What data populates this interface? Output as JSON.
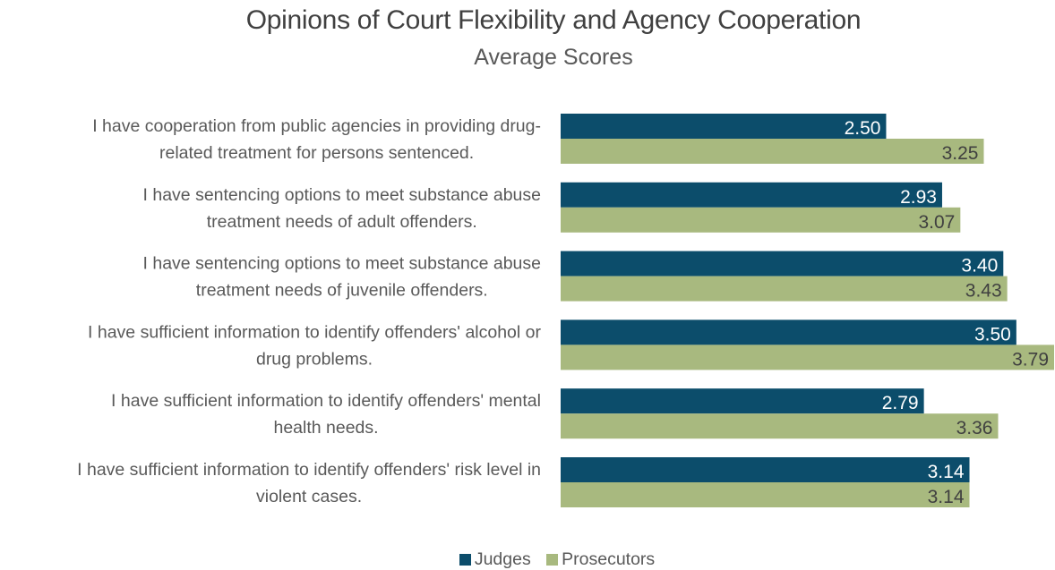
{
  "chart_data": {
    "type": "bar",
    "orientation": "horizontal",
    "title": "Opinions of Court Flexibility and Agency Cooperation",
    "subtitle": "Average Scores",
    "categories": [
      [
        "I have cooperation from public agencies in providing drug-",
        "related treatment for persons sentenced."
      ],
      [
        "I have sentencing options to meet substance abuse",
        "treatment needs of adult offenders."
      ],
      [
        "I have sentencing options to meet substance abuse",
        "treatment needs of juvenile offenders."
      ],
      [
        "I have sufficient information to identify offenders' alcohol or",
        "drug problems."
      ],
      [
        "I have sufficient information to identify offenders' mental",
        "health needs."
      ],
      [
        "I have sufficient information to identify offenders' risk level in",
        "violent cases."
      ]
    ],
    "series": [
      {
        "name": "Judges",
        "color": "#0c4d6b",
        "values": [
          2.5,
          2.93,
          3.4,
          3.5,
          2.79,
          3.14
        ],
        "labels": [
          "2.50",
          "2.93",
          "3.40",
          "3.50",
          "2.79",
          "3.14"
        ]
      },
      {
        "name": "Prosecutors",
        "color": "#a8b97f",
        "values": [
          3.25,
          3.07,
          3.43,
          3.79,
          3.36,
          3.14
        ],
        "labels": [
          "3.25",
          "3.07",
          "3.43",
          "3.79",
          "3.36",
          "3.14"
        ]
      }
    ],
    "xlim": [
      0,
      3.79
    ],
    "grid": false,
    "legend_position": "bottom"
  }
}
